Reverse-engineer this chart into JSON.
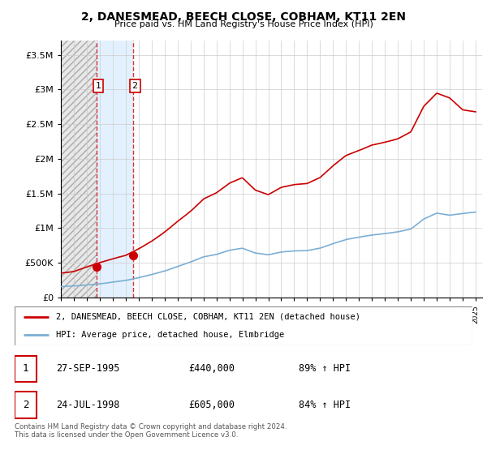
{
  "title": "2, DANESMEAD, BEECH CLOSE, COBHAM, KT11 2EN",
  "subtitle": "Price paid vs. HM Land Registry's House Price Index (HPI)",
  "ytick_values": [
    0,
    500000,
    1000000,
    1500000,
    2000000,
    2500000,
    3000000,
    3500000
  ],
  "ylim": [
    0,
    3700000
  ],
  "xlim_start": 1993.0,
  "xlim_end": 2025.5,
  "sale1_date": 1995.74,
  "sale1_price": 440000,
  "sale2_date": 1998.56,
  "sale2_price": 605000,
  "sale1_label": "1",
  "sale2_label": "2",
  "property_color": "#cc0000",
  "hpi_color": "#7bafd4",
  "hpi_fill_color": "#ddeeff",
  "legend_property": "2, DANESMEAD, BEECH CLOSE, COBHAM, KT11 2EN (detached house)",
  "legend_hpi": "HPI: Average price, detached house, Elmbridge",
  "table_row1": [
    "1",
    "27-SEP-1995",
    "£440,000",
    "89% ↑ HPI"
  ],
  "table_row2": [
    "2",
    "24-JUL-1998",
    "£605,000",
    "84% ↑ HPI"
  ],
  "footnote": "Contains HM Land Registry data © Crown copyright and database right 2024.\nThis data is licensed under the Open Government Licence v3.0.",
  "hatch_end_date": 1995.74,
  "grid_color": "#cccccc"
}
